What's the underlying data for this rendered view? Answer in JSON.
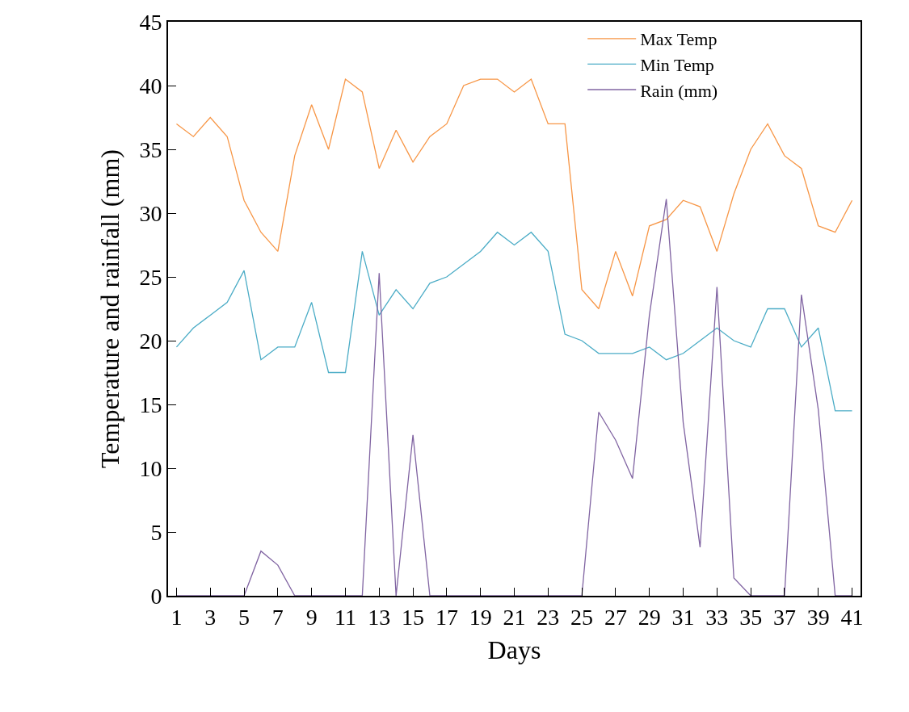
{
  "chart_data": {
    "type": "line",
    "xlabel": "Days",
    "ylabel": "Temperature and rainfall (mm)",
    "x": [
      1,
      2,
      3,
      4,
      5,
      6,
      7,
      8,
      9,
      10,
      11,
      12,
      13,
      14,
      15,
      16,
      17,
      18,
      19,
      20,
      21,
      22,
      23,
      24,
      25,
      26,
      27,
      28,
      29,
      30,
      31,
      32,
      33,
      34,
      35,
      36,
      37,
      38,
      39,
      40,
      41
    ],
    "series": [
      {
        "name": "Max Temp",
        "color": "#f79646",
        "values": [
          37,
          36,
          37.5,
          36,
          31,
          28.5,
          27,
          34.5,
          38.5,
          35,
          40.5,
          39.5,
          33.5,
          36.5,
          34,
          36,
          37,
          40,
          40.5,
          40.5,
          39.5,
          40.5,
          37,
          37,
          24,
          22.5,
          27,
          23.5,
          29,
          29.5,
          31,
          30.5,
          27,
          31.5,
          35,
          37,
          34.5,
          33.5,
          29,
          28.5,
          31
        ]
      },
      {
        "name": "Min Temp",
        "color": "#4bacc6",
        "values": [
          19.5,
          21,
          22,
          23,
          25.5,
          18.5,
          19.5,
          19.5,
          23,
          17.5,
          17.5,
          27,
          22,
          24,
          22.5,
          24.5,
          25,
          26,
          27,
          28.5,
          27.5,
          28.5,
          27,
          20.5,
          20,
          19,
          19,
          19,
          19.5,
          18.5,
          19,
          20,
          21,
          20,
          19.5,
          22.5,
          22.5,
          19.5,
          21,
          14.5,
          14.5
        ]
      },
      {
        "name": "Rain (mm)",
        "color": "#8064a2",
        "values": [
          0,
          0,
          0,
          0,
          0,
          3.5,
          2.4,
          0,
          0,
          0,
          0,
          0,
          25.3,
          0,
          12.6,
          0,
          0,
          0,
          0,
          0,
          0,
          0,
          0,
          0,
          0,
          14.4,
          12.2,
          9.2,
          22,
          31.1,
          13.6,
          3.8,
          24.2,
          1.4,
          0,
          0,
          0,
          23.6,
          14.6,
          0,
          0
        ]
      }
    ],
    "xlim": [
      0.5,
      41.5
    ],
    "xticks": [
      1,
      3,
      5,
      7,
      9,
      11,
      13,
      15,
      17,
      19,
      21,
      23,
      25,
      27,
      29,
      31,
      33,
      35,
      37,
      39,
      41
    ],
    "ylim": [
      0,
      45
    ],
    "yticks": [
      0,
      5,
      10,
      15,
      20,
      25,
      30,
      35,
      40,
      45
    ],
    "legend": "top right",
    "marker": "none",
    "line_style": "solid"
  }
}
